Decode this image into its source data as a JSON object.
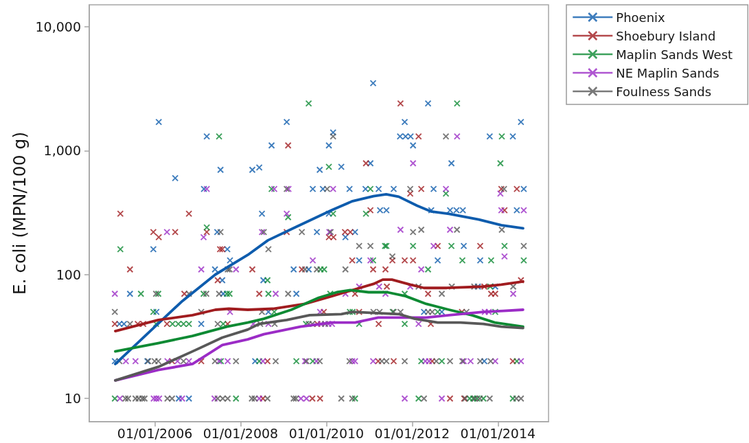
{
  "chart_data": {
    "type": "scatter",
    "ylabel": "E. coli (MPN/100 g)",
    "xlim": [
      "2004-06-21",
      "2015-03-08"
    ],
    "xticks": [
      {
        "value": "2006-01-01",
        "label": "01/01/2006"
      },
      {
        "value": "2008-01-01",
        "label": "01/01/2008"
      },
      {
        "value": "2010-01-01",
        "label": "01/01/2010"
      },
      {
        "value": "2012-01-01",
        "label": "01/01/2012"
      },
      {
        "value": "2014-01-01",
        "label": "01/01/2014"
      }
    ],
    "ylim": [
      6.5,
      15000
    ],
    "yticks": [
      10,
      100,
      {
        "value": 1000,
        "label": "1,000"
      },
      {
        "value": 10000,
        "label": "10,000"
      }
    ],
    "log": "y",
    "legend": "top right",
    "marker": "cross",
    "series": [
      {
        "name": "Phoenix",
        "color": "#0e5cad",
        "x": [
          "2005-01-25",
          "2005-03-05",
          "2005-04-13",
          "2005-06-03",
          "2005-10-29",
          "2005-12-19",
          "2006-01-14",
          "2006-02-03",
          "2006-06-23",
          "2006-07-24",
          "2006-10-18",
          "2007-01-31",
          "2007-02-23",
          "2007-03-19",
          "2007-05-28",
          "2007-06-16",
          "2007-07-14",
          "2007-07-29",
          "2007-08-06",
          "2007-09-10",
          "2007-10-03",
          "2008-04-10",
          "2008-05-04",
          "2008-06-08",
          "2008-07-01",
          "2008-07-13",
          "2008-08-25",
          "2008-09-21",
          "2009-01-28",
          "2009-03-28",
          "2009-04-20",
          "2009-08-03",
          "2009-09-07",
          "2009-10-12",
          "2009-11-05",
          "2009-12-02",
          "2010-01-22",
          "2010-01-22",
          "2010-02-27",
          "2010-05-08",
          "2010-06-12",
          "2010-07-17",
          "2010-09-02",
          "2010-10-07",
          "2010-11-30",
          "2011-01-11",
          "2011-02-03",
          "2011-03-22",
          "2011-04-03",
          "2011-05-27",
          "2011-07-28",
          "2011-09-20",
          "2011-10-30",
          "2011-11-06",
          "2011-12-19",
          "2012-01-09",
          "2012-04-11",
          "2012-05-16",
          "2012-06-12",
          "2012-07-02",
          "2012-08-06",
          "2012-09-10",
          "2012-11-19",
          "2012-12-01",
          "2013-01-13",
          "2013-03-08",
          "2013-03-16",
          "2013-07-14",
          "2013-08-03",
          "2013-09-07",
          "2013-10-23",
          "2013-12-09",
          "2014-05-08",
          "2014-06-11",
          "2014-07-16",
          "2014-08-09"
        ],
        "values": [
          20,
          40,
          40,
          70,
          20,
          160,
          50,
          1700,
          600,
          10,
          10,
          40,
          490,
          1300,
          110,
          220,
          700,
          90,
          70,
          160,
          130,
          700,
          20,
          730,
          310,
          90,
          50,
          1100,
          1700,
          110,
          70,
          110,
          490,
          220,
          700,
          490,
          1100,
          310,
          1400,
          740,
          200,
          490,
          220,
          130,
          490,
          790,
          3500,
          490,
          330,
          330,
          490,
          1300,
          1700,
          1300,
          1300,
          1100,
          50,
          2400,
          330,
          490,
          130,
          50,
          330,
          790,
          330,
          330,
          170,
          80,
          130,
          20,
          1300,
          80,
          1300,
          330,
          1700,
          490
        ]
      },
      {
        "name": "Shoebury Island",
        "color": "#a01c1f",
        "x": [
          "2005-01-25",
          "2005-03-13",
          "2005-06-03",
          "2005-08-08",
          "2005-09-24",
          "2005-12-19",
          "2006-02-03",
          "2006-04-14",
          "2006-05-27",
          "2006-06-23",
          "2006-09-09",
          "2006-10-18",
          "2007-01-31",
          "2007-03-19",
          "2007-06-20",
          "2007-07-10",
          "2007-07-29",
          "2007-09-13",
          "2008-04-10",
          "2008-06-08",
          "2008-07-09",
          "2008-08-17",
          "2009-01-28",
          "2009-02-09",
          "2009-06-06",
          "2009-09-03",
          "2009-10-16",
          "2009-11-08",
          "2009-12-10",
          "2010-01-22",
          "2010-03-02",
          "2010-06-08",
          "2010-07-24",
          "2010-08-09",
          "2010-09-02",
          "2010-10-07",
          "2010-12-04",
          "2011-01-11",
          "2011-02-03",
          "2011-03-18",
          "2011-03-22",
          "2011-05-19",
          "2011-05-31",
          "2011-07-17",
          "2011-07-28",
          "2011-09-24",
          "2011-10-30",
          "2011-12-16",
          "2012-01-09",
          "2012-02-25",
          "2012-03-19",
          "2012-05-16",
          "2012-06-08",
          "2012-06-20",
          "2012-08-06",
          "2012-11-19",
          "2013-02-28",
          "2013-03-20",
          "2013-08-03",
          "2013-09-07",
          "2013-11-04",
          "2013-12-09",
          "2014-01-30",
          "2014-02-26",
          "2014-05-08",
          "2014-06-11",
          "2014-07-16"
        ],
        "values": [
          40,
          310,
          110,
          40,
          40,
          220,
          200,
          40,
          20,
          220,
          70,
          310,
          20,
          220,
          90,
          160,
          160,
          40,
          110,
          70,
          10,
          20,
          220,
          1100,
          110,
          10,
          40,
          10,
          50,
          200,
          200,
          220,
          220,
          130,
          70,
          50,
          790,
          330,
          110,
          20,
          40,
          110,
          80,
          130,
          20,
          2400,
          130,
          450,
          130,
          1300,
          490,
          70,
          40,
          20,
          170,
          10,
          50,
          10,
          170,
          80,
          70,
          70,
          490,
          330,
          20,
          490,
          90
        ]
      },
      {
        "name": "Maplin Sands West",
        "color": "#0d8a33",
        "x": [
          "2005-01-25",
          "2005-03-13",
          "2005-09-04",
          "2005-12-19",
          "2006-01-11",
          "2006-01-30",
          "2006-05-31",
          "2006-07-20",
          "2006-09-02",
          "2006-10-18",
          "2007-02-20",
          "2007-03-19",
          "2007-07-02",
          "2007-07-17",
          "2007-08-06",
          "2007-09-06",
          "2007-09-29",
          "2007-11-23",
          "2008-06-08",
          "2008-08-17",
          "2008-08-25",
          "2008-09-21",
          "2008-10-14",
          "2009-02-09",
          "2009-04-20",
          "2009-07-11",
          "2009-08-03",
          "2009-09-07",
          "2009-11-12",
          "2009-12-13",
          "2010-01-22",
          "2010-02-03",
          "2010-02-27",
          "2010-07-20",
          "2010-08-12",
          "2010-09-02",
          "2010-10-07",
          "2010-12-04",
          "2011-01-11",
          "2011-02-03",
          "2011-05-15",
          "2011-05-27",
          "2011-07-20",
          "2011-10-30",
          "2011-10-30",
          "2012-01-09",
          "2012-02-25",
          "2012-03-19",
          "2012-05-16",
          "2012-08-06",
          "2012-09-10",
          "2012-10-15",
          "2012-12-01",
          "2013-01-18",
          "2013-03-04",
          "2013-05-05",
          "2013-06-05",
          "2013-07-07",
          "2013-08-30",
          "2013-10-27",
          "2013-11-04",
          "2013-12-09",
          "2014-01-22",
          "2014-02-03",
          "2014-02-26",
          "2014-05-08",
          "2014-06-11",
          "2014-08-09"
        ],
        "values": [
          10,
          160,
          70,
          50,
          40,
          70,
          40,
          40,
          40,
          40,
          70,
          240,
          1300,
          20,
          40,
          70,
          70,
          10,
          20,
          90,
          70,
          490,
          50,
          290,
          20,
          40,
          2400,
          20,
          110,
          110,
          740,
          70,
          310,
          50,
          50,
          10,
          40,
          310,
          490,
          130,
          170,
          170,
          50,
          70,
          40,
          170,
          10,
          20,
          110,
          50,
          20,
          450,
          170,
          2400,
          130,
          10,
          10,
          10,
          10,
          80,
          130,
          50,
          790,
          1300,
          170,
          10,
          20,
          130
        ]
      },
      {
        "name": "NE Maplin Sands",
        "color": "#9b2cc6",
        "x": [
          "2005-01-25",
          "2005-03-09",
          "2005-04-29",
          "2005-07-20",
          "2005-12-22",
          "2006-01-14",
          "2006-02-06",
          "2006-04-14",
          "2006-04-18",
          "2006-07-13",
          "2006-08-21",
          "2006-10-18",
          "2007-01-31",
          "2007-02-20",
          "2007-03-19",
          "2007-05-24",
          "2007-07-02",
          "2007-09-13",
          "2007-10-03",
          "2007-11-23",
          "2008-04-18",
          "2008-06-08",
          "2008-07-01",
          "2008-07-09",
          "2008-08-25",
          "2008-10-14",
          "2008-10-26",
          "2009-01-28",
          "2009-02-12",
          "2009-05-29",
          "2009-07-03",
          "2009-07-15",
          "2009-09-07",
          "2009-10-08",
          "2009-11-08",
          "2009-11-16",
          "2010-01-18",
          "2010-01-26",
          "2010-02-18",
          "2010-02-27",
          "2010-06-12",
          "2010-08-09",
          "2010-09-02",
          "2010-10-07",
          "2011-01-11",
          "2011-02-03",
          "2011-03-26",
          "2011-05-19",
          "2011-09-24",
          "2011-10-30",
          "2011-12-16",
          "2012-01-09",
          "2012-02-25",
          "2012-03-19",
          "2012-04-23",
          "2012-05-24",
          "2012-07-02",
          "2012-09-10",
          "2012-10-15",
          "2012-11-19",
          "2013-01-18",
          "2013-03-16",
          "2013-05-13",
          "2013-09-11",
          "2013-10-15",
          "2013-12-09",
          "2014-01-22",
          "2014-01-30",
          "2014-02-26",
          "2014-05-11",
          "2014-07-16",
          "2014-08-09"
        ],
        "values": [
          70,
          10,
          20,
          20,
          10,
          10,
          10,
          220,
          20,
          20,
          10,
          20,
          110,
          200,
          490,
          10,
          20,
          20,
          50,
          110,
          40,
          10,
          220,
          20,
          40,
          490,
          70,
          310,
          490,
          10,
          20,
          10,
          130,
          20,
          50,
          40,
          40,
          220,
          40,
          490,
          70,
          20,
          20,
          80,
          130,
          20,
          80,
          70,
          230,
          10,
          80,
          790,
          40,
          110,
          20,
          20,
          170,
          10,
          490,
          230,
          1300,
          20,
          20,
          50,
          50,
          20,
          450,
          330,
          140,
          70,
          20,
          330
        ]
      },
      {
        "name": "Foulness Sands",
        "color": "#585858",
        "x": [
          "2005-01-25",
          "2005-03-05",
          "2005-04-25",
          "2005-05-18",
          "2005-06-03",
          "2005-07-20",
          "2005-08-16",
          "2005-09-16",
          "2005-10-05",
          "2005-11-05",
          "2005-12-30",
          "2006-01-11",
          "2006-01-30",
          "2006-04-18",
          "2006-05-27",
          "2006-09-02",
          "2006-10-18",
          "2007-01-31",
          "2007-03-15",
          "2007-05-28",
          "2007-06-20",
          "2007-06-20",
          "2007-07-02",
          "2007-07-14",
          "2007-08-02",
          "2007-09-13",
          "2007-09-13",
          "2007-09-29",
          "2007-11-23",
          "2008-04-06",
          "2008-04-30",
          "2008-06-16",
          "2008-07-01",
          "2008-07-17",
          "2008-08-17",
          "2008-08-25",
          "2008-10-17",
          "2008-10-26",
          "2009-01-28",
          "2009-02-09",
          "2009-03-28",
          "2009-04-16",
          "2009-06-06",
          "2009-07-03",
          "2009-07-15",
          "2009-08-03",
          "2009-09-03",
          "2009-10-12",
          "2009-11-05",
          "2009-12-21",
          "2010-01-07",
          "2010-02-06",
          "2010-02-27",
          "2010-05-08",
          "2010-06-12",
          "2010-07-17",
          "2010-08-09",
          "2010-10-07",
          "2011-01-11",
          "2011-02-06",
          "2011-03-30",
          "2011-04-18",
          "2011-05-27",
          "2011-07-17",
          "2011-07-28",
          "2011-09-24",
          "2011-10-30",
          "2011-12-16",
          "2012-01-09",
          "2012-02-25",
          "2012-03-19",
          "2012-04-11",
          "2012-05-16",
          "2012-06-20",
          "2012-07-25",
          "2012-09-10",
          "2012-10-15",
          "2012-11-19",
          "2012-12-04",
          "2013-01-17",
          "2013-03-04",
          "2013-03-28",
          "2013-04-08",
          "2013-06-13",
          "2013-06-17",
          "2013-07-30",
          "2013-08-03",
          "2013-10-23",
          "2013-10-31",
          "2014-02-03",
          "2014-02-22",
          "2014-05-11",
          "2014-06-07",
          "2014-07-16",
          "2014-08-09"
        ],
        "values": [
          50,
          20,
          10,
          10,
          40,
          10,
          10,
          10,
          10,
          20,
          20,
          70,
          20,
          10,
          10,
          20,
          70,
          50,
          70,
          20,
          40,
          10,
          70,
          220,
          10,
          110,
          10,
          110,
          20,
          10,
          10,
          40,
          50,
          220,
          10,
          160,
          40,
          20,
          490,
          70,
          10,
          10,
          220,
          110,
          20,
          40,
          40,
          110,
          20,
          40,
          490,
          220,
          1300,
          10,
          110,
          20,
          10,
          170,
          170,
          50,
          50,
          20,
          20,
          140,
          50,
          50,
          20,
          490,
          220,
          80,
          230,
          10,
          50,
          50,
          20,
          70,
          1300,
          20,
          80,
          230,
          20,
          10,
          50,
          80,
          10,
          10,
          20,
          10,
          20,
          230,
          490,
          80,
          10,
          10,
          170
        ]
      },
      {
        "type": "line",
        "marker": "none",
        "color": "#0e5cad",
        "x": [
          "2005-01-29",
          "2005-10-25",
          "2006-08-13",
          "2007-05-31",
          "2008-03-02",
          "2008-08-21",
          "2009-04-16",
          "2010-02-18",
          "2010-08-12",
          "2011-02-06",
          "2011-05-25",
          "2011-09-09",
          "2012-02-13",
          "2012-06-08",
          "2012-11-11",
          "2013-07-22",
          "2014-01-30",
          "2014-08-03"
        ],
        "values": [
          19,
          33,
          60,
          100,
          144,
          189,
          242,
          332,
          391,
          429,
          444,
          425,
          359,
          323,
          309,
          278,
          250,
          236
        ]
      },
      {
        "type": "line",
        "marker": "none",
        "color": "#a01c1f",
        "x": [
          "2005-01-29",
          "2006-01-30",
          "2006-11-18",
          "2007-05-31",
          "2007-09-23",
          "2008-03-02",
          "2008-10-03",
          "2009-07-03",
          "2010-02-18",
          "2010-09-02",
          "2011-02-06",
          "2011-04-26",
          "2011-07-13",
          "2011-12-16",
          "2012-04-11",
          "2012-10-23",
          "2013-08-30",
          "2014-01-30",
          "2014-08-03"
        ],
        "values": [
          35,
          43,
          47,
          52,
          53,
          52,
          53,
          58,
          67,
          76,
          84,
          91,
          91,
          83,
          78,
          78,
          80,
          83,
          88
        ]
      },
      {
        "type": "line",
        "marker": "none",
        "color": "#0d8a33",
        "x": [
          "2005-01-29",
          "2006-01-30",
          "2006-11-18",
          "2007-09-06",
          "2008-03-02",
          "2008-07-17",
          "2009-03-08",
          "2009-10-27",
          "2010-03-30",
          "2010-07-24",
          "2010-12-27",
          "2011-06-03",
          "2011-11-06",
          "2012-04-30",
          "2012-11-11",
          "2013-05-24",
          "2013-12-05",
          "2014-08-03"
        ],
        "values": [
          24,
          28,
          32,
          38,
          41,
          44,
          52,
          65,
          72,
          75,
          72,
          72,
          67,
          58,
          52,
          47,
          41,
          38
        ]
      },
      {
        "type": "line",
        "marker": "none",
        "color": "#9b2cc6",
        "x": [
          "2005-01-29",
          "2006-01-30",
          "2006-11-18",
          "2007-07-29",
          "2008-03-02",
          "2008-07-17",
          "2009-05-25",
          "2010-02-18",
          "2010-09-02",
          "2011-03-18",
          "2012-04-30",
          "2012-11-11",
          "2013-08-30",
          "2014-02-18",
          "2014-08-03"
        ],
        "values": [
          14,
          17,
          19,
          27,
          30,
          33,
          38,
          41,
          41,
          45,
          45,
          47,
          50,
          51,
          52
        ]
      },
      {
        "type": "line",
        "marker": "none",
        "color": "#585858",
        "x": [
          "2005-01-29",
          "2006-01-30",
          "2006-11-18",
          "2007-07-29",
          "2008-03-02",
          "2008-06-08",
          "2009-01-28",
          "2009-08-11",
          "2010-05-08",
          "2010-08-12",
          "2011-09-09",
          "2012-01-24",
          "2012-08-06",
          "2013-02-16",
          "2013-08-30",
          "2014-01-30",
          "2014-08-03"
        ],
        "values": [
          14,
          18,
          24,
          31,
          36,
          40,
          43,
          47,
          48,
          50,
          48,
          44,
          41,
          41,
          40,
          38,
          37
        ]
      }
    ]
  }
}
